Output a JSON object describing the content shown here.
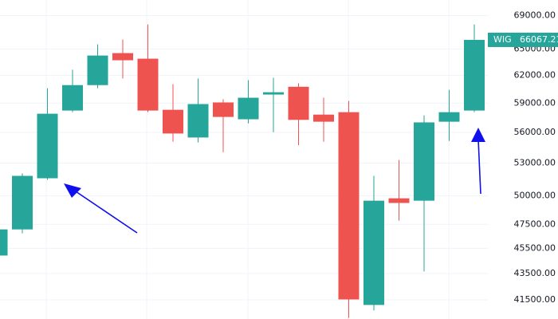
{
  "chart_data": {
    "type": "candlestick",
    "symbol": "WIG",
    "log_scale": true,
    "grid": true,
    "up_color": "#26a69a",
    "down_color": "#ef5350",
    "open": [
      44920,
      47070,
      51580,
      58220,
      60930,
      64520,
      63880,
      58300,
      55480,
      59070,
      57320,
      59910,
      60750,
      57800,
      58050,
      41120,
      49760,
      49550,
      57070,
      58220
    ],
    "high": [
      47540,
      52030,
      60590,
      62640,
      65540,
      66110,
      67920,
      61040,
      61650,
      59410,
      61470,
      61740,
      61130,
      59570,
      59240,
      51800,
      53290,
      57720,
      60420,
      67920
    ],
    "low": [
      44790,
      46740,
      51430,
      58050,
      60590,
      61650,
      58050,
      55060,
      54990,
      54050,
      56900,
      56010,
      54730,
      55060,
      40180,
      40720,
      47820,
      43660,
      55140,
      58050
    ],
    "close": [
      47070,
      51800,
      57890,
      60930,
      64240,
      63700,
      58220,
      55880,
      58900,
      57560,
      59570,
      60160,
      57260,
      57070,
      41530,
      49550,
      49350,
      57000,
      58050,
      66067.21
    ],
    "ylim": [
      40100,
      70950
    ],
    "yticks": [
      {
        "value": 69000,
        "label": "69000.00"
      },
      {
        "value": 65000,
        "label": "65000.00"
      },
      {
        "value": 62000,
        "label": "62000.00"
      },
      {
        "value": 59000,
        "label": "59000.00"
      },
      {
        "value": 56000,
        "label": "56000.00"
      },
      {
        "value": 53000,
        "label": "53000.00"
      },
      {
        "value": 50000,
        "label": "50000.00"
      },
      {
        "value": 47500,
        "label": "47500.00"
      },
      {
        "value": 45500,
        "label": "45500.00"
      },
      {
        "value": 43500,
        "label": "43500.00"
      },
      {
        "value": 41500,
        "label": "41500.00"
      }
    ]
  }
}
